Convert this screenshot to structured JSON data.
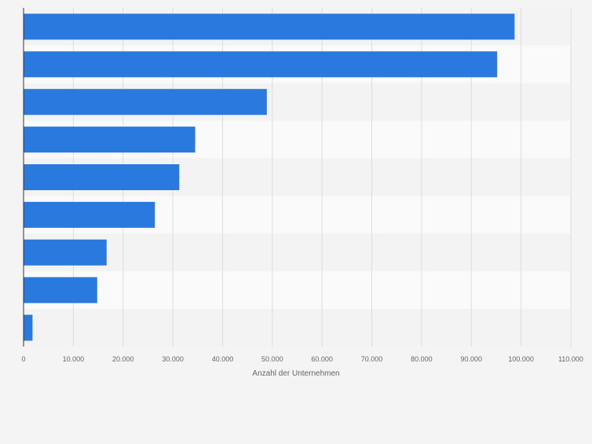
{
  "chart_data": {
    "type": "bar",
    "orientation": "horizontal",
    "categories": [
      "",
      "",
      "",
      "",
      "",
      "",
      "",
      "",
      ""
    ],
    "values": [
      98700,
      95200,
      48900,
      34500,
      31300,
      26400,
      16700,
      14800,
      1800
    ],
    "xlabel": "Anzahl der Unternehmen",
    "xlim": [
      0,
      110000
    ],
    "xticks": [
      0,
      10000,
      20000,
      30000,
      40000,
      50000,
      60000,
      70000,
      80000,
      90000,
      100000,
      110000
    ],
    "xtick_labels": [
      "0",
      "10.000",
      "20.000",
      "30.000",
      "40.000",
      "50.000",
      "60.000",
      "70.000",
      "80.000",
      "90.000",
      "100.000",
      "110.000"
    ],
    "grid": "vertical",
    "legend": "none",
    "colors": {
      "bar": "#2979de",
      "band_dark": "#f3f3f3",
      "band_light": "#fafafa",
      "gridline": "#dddddd",
      "axis": "#333333",
      "text": "#666666"
    }
  }
}
